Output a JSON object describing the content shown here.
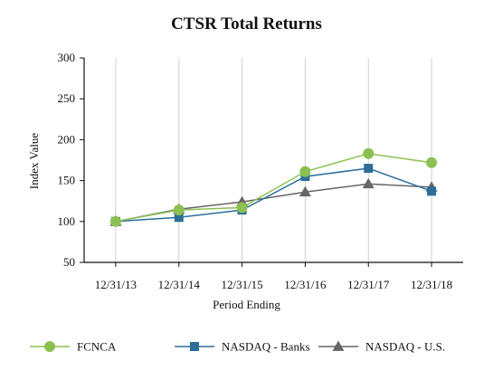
{
  "chart_data": {
    "type": "line",
    "title": "CTSR Total Returns",
    "xlabel": "Period Ending",
    "ylabel": "Index Value",
    "categories": [
      "12/31/13",
      "12/31/14",
      "12/31/15",
      "12/31/16",
      "12/31/17",
      "12/31/18"
    ],
    "ylim": [
      50,
      300
    ],
    "yticks": [
      50,
      100,
      150,
      200,
      250,
      300
    ],
    "grid": {
      "vertical": true,
      "horizontal": false
    },
    "legend_position": "bottom",
    "series": [
      {
        "name": "FCNCA",
        "color": "#8cc152",
        "marker": "circle",
        "values": [
          100,
          114,
          117,
          161,
          183,
          172
        ]
      },
      {
        "name": "NASDAQ - Banks",
        "color": "#2b6f99",
        "marker": "square",
        "values": [
          100,
          105,
          114,
          155,
          165,
          137
        ]
      },
      {
        "name": "NASDAQ - U.S.",
        "color": "#666666",
        "marker": "triangle",
        "values": [
          100,
          115,
          124,
          136,
          146,
          142
        ]
      }
    ]
  }
}
